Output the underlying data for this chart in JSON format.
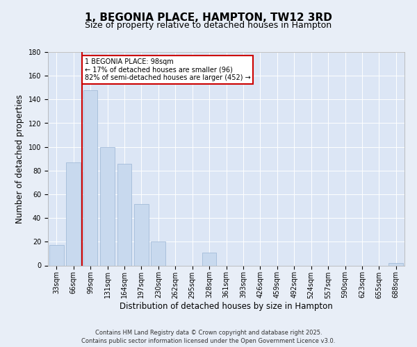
{
  "title": "1, BEGONIA PLACE, HAMPTON, TW12 3RD",
  "subtitle": "Size of property relative to detached houses in Hampton",
  "xlabel": "Distribution of detached houses by size in Hampton",
  "ylabel": "Number of detached properties",
  "categories": [
    "33sqm",
    "66sqm",
    "99sqm",
    "131sqm",
    "164sqm",
    "197sqm",
    "230sqm",
    "262sqm",
    "295sqm",
    "328sqm",
    "361sqm",
    "393sqm",
    "426sqm",
    "459sqm",
    "492sqm",
    "524sqm",
    "557sqm",
    "590sqm",
    "623sqm",
    "655sqm",
    "688sqm"
  ],
  "values": [
    17,
    87,
    148,
    100,
    86,
    52,
    20,
    0,
    0,
    11,
    0,
    0,
    0,
    0,
    0,
    0,
    0,
    0,
    0,
    0,
    2
  ],
  "bar_color": "#c8d9ee",
  "bar_edge_color": "#9ab4d4",
  "property_line_x": 1.5,
  "annotation_text": "1 BEGONIA PLACE: 98sqm\n← 17% of detached houses are smaller (96)\n82% of semi-detached houses are larger (452) →",
  "annotation_box_color": "#ffffff",
  "annotation_box_edge_color": "#cc0000",
  "property_line_color": "#cc0000",
  "ylim": [
    0,
    180
  ],
  "yticks": [
    0,
    20,
    40,
    60,
    80,
    100,
    120,
    140,
    160,
    180
  ],
  "background_color": "#e8eef7",
  "plot_background": "#dce6f5",
  "footer_line1": "Contains HM Land Registry data © Crown copyright and database right 2025.",
  "footer_line2": "Contains public sector information licensed under the Open Government Licence v3.0.",
  "title_fontsize": 11,
  "subtitle_fontsize": 9,
  "axis_label_fontsize": 8.5,
  "tick_fontsize": 7,
  "footer_fontsize": 6
}
